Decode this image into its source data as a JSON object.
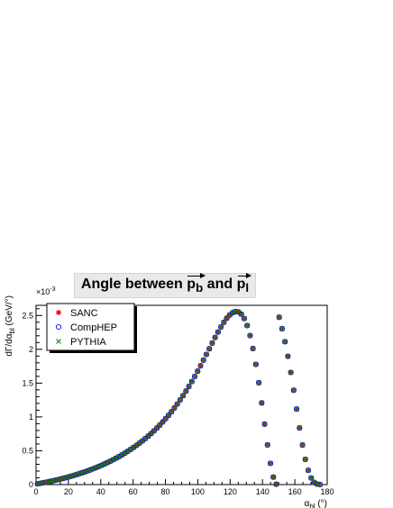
{
  "chart_data": {
    "type": "scatter",
    "title": {
      "main": "Angle between",
      "v1": "p",
      "v1_sub": "b",
      "and": "and",
      "v2": "p",
      "v2_sub": "l"
    },
    "xlabel": {
      "base": "α",
      "sub": "bl",
      "unit": " (°)"
    },
    "ylabel": {
      "base": "dΓ/dα",
      "sub": "bl",
      "unit": " (GeV/°)"
    },
    "y_multiplier": "×10",
    "y_multiplier_exp": "-3",
    "xlim": [
      0,
      180
    ],
    "ylim": [
      0,
      2.65
    ],
    "x_ticks": [
      "0",
      "20",
      "40",
      "60",
      "80",
      "100",
      "120",
      "140",
      "160",
      "180"
    ],
    "y_ticks": [
      "0",
      "0.5",
      "1",
      "1.5",
      "2",
      "2.5"
    ],
    "legend_position": "top-left",
    "grid": false,
    "x": [
      0.9,
      2.7,
      4.5,
      6.3,
      8.1,
      9.9,
      11.7,
      13.5,
      15.3,
      17.1,
      18.9,
      20.7,
      22.5,
      24.3,
      26.1,
      27.9,
      29.7,
      31.5,
      33.3,
      35.1,
      36.9,
      38.7,
      40.5,
      42.3,
      44.1,
      45.9,
      47.7,
      49.5,
      51.3,
      53.1,
      54.9,
      56.7,
      58.5,
      60.3,
      62.1,
      63.9,
      65.7,
      67.5,
      69.3,
      71.1,
      72.9,
      74.7,
      76.5,
      78.3,
      80.1,
      81.9,
      83.7,
      85.5,
      87.3,
      89.1,
      90.9,
      92.7,
      94.5,
      96.3,
      98.1,
      99.9,
      101.7,
      103.5,
      105.3,
      107.1,
      108.9,
      110.7,
      112.5,
      114.3,
      116.1,
      117.9,
      119.7,
      121.5,
      123.3,
      125.1,
      126.9,
      128.7,
      130.5,
      132.3,
      134.1,
      135.9,
      137.7,
      139.5,
      141.3,
      143.1,
      144.9,
      146.7,
      148.5,
      150.3,
      152.1,
      153.9,
      155.7,
      157.5,
      159.3,
      161.1,
      162.9,
      164.7,
      166.5,
      168.3,
      170.1,
      171.9,
      173.7,
      175.5,
      177.3,
      179.1
    ],
    "series": [
      {
        "name": "SANC",
        "marker": "star",
        "color": "#ff0000",
        "values": [
          0.011,
          0.019,
          0.027,
          0.035,
          0.044,
          0.053,
          0.063,
          0.073,
          0.083,
          0.094,
          0.105,
          0.117,
          0.13,
          0.142,
          0.156,
          0.17,
          0.184,
          0.199,
          0.215,
          0.232,
          0.249,
          0.267,
          0.285,
          0.305,
          0.325,
          0.346,
          0.368,
          0.391,
          0.414,
          0.439,
          0.465,
          0.492,
          0.52,
          0.549,
          0.58,
          0.612,
          0.645,
          0.68,
          0.716,
          0.754,
          0.794,
          0.836,
          0.88,
          0.926,
          0.974,
          1.024,
          1.077,
          1.133,
          1.191,
          1.252,
          1.315,
          1.382,
          1.451,
          1.523,
          1.599,
          1.677,
          1.757,
          1.84,
          1.924,
          2.008,
          2.092,
          2.175,
          2.255,
          2.33,
          2.399,
          2.459,
          2.507,
          2.541,
          2.557,
          2.552,
          2.52,
          2.455,
          2.351,
          2.203,
          2.011,
          1.777,
          1.506,
          1.207,
          0.894,
          0.587,
          0.314,
          0.111,
          0.005,
          2.474,
          2.304,
          2.112,
          1.897,
          1.658,
          1.395,
          1.117,
          0.838,
          0.585,
          0.373,
          0.211,
          0.098,
          0.033,
          0.008,
          0.001
        ]
      },
      {
        "name": "CompHEP",
        "marker": "circle",
        "color": "#0000ff",
        "values": [
          0.011,
          0.019,
          0.027,
          0.035,
          0.044,
          0.053,
          0.063,
          0.073,
          0.083,
          0.094,
          0.105,
          0.117,
          0.13,
          0.142,
          0.156,
          0.17,
          0.184,
          0.199,
          0.215,
          0.232,
          0.249,
          0.267,
          0.285,
          0.305,
          0.325,
          0.346,
          0.368,
          0.391,
          0.414,
          0.439,
          0.465,
          0.492,
          0.52,
          0.549,
          0.58,
          0.612,
          0.645,
          0.68,
          0.716,
          0.754,
          0.794,
          0.836,
          0.88,
          0.926,
          0.974,
          1.024,
          1.077,
          1.133,
          1.191,
          1.252,
          1.315,
          1.382,
          1.451,
          1.523,
          1.599,
          1.677,
          1.757,
          1.84,
          1.924,
          2.008,
          2.092,
          2.175,
          2.255,
          2.33,
          2.399,
          2.459,
          2.507,
          2.541,
          2.557,
          2.552,
          2.52,
          2.455,
          2.351,
          2.203,
          2.011,
          1.777,
          1.506,
          1.207,
          0.894,
          0.587,
          0.314,
          0.111,
          0.005,
          2.474,
          2.304,
          2.112,
          1.897,
          1.658,
          1.395,
          1.117,
          0.838,
          0.585,
          0.373,
          0.211,
          0.098,
          0.033,
          0.008,
          0.001
        ]
      },
      {
        "name": "PYTHIA",
        "marker": "cross",
        "color": "#007f00",
        "values": [
          0.011,
          0.019,
          0.027,
          0.035,
          0.044,
          0.053,
          0.063,
          0.073,
          0.083,
          0.094,
          0.105,
          0.117,
          0.13,
          0.142,
          0.156,
          0.17,
          0.184,
          0.199,
          0.215,
          0.232,
          0.249,
          0.267,
          0.285,
          0.305,
          0.325,
          0.346,
          0.368,
          0.391,
          0.414,
          0.439,
          0.465,
          0.492,
          0.52,
          0.549,
          0.58,
          0.612,
          0.645,
          0.68,
          0.716,
          0.754,
          0.794,
          0.836,
          0.88,
          0.926,
          0.974,
          1.024,
          1.077,
          1.133,
          1.191,
          1.252,
          1.315,
          1.382,
          1.451,
          1.523,
          1.599,
          1.677,
          1.757,
          1.84,
          1.924,
          2.008,
          2.092,
          2.175,
          2.255,
          2.33,
          2.399,
          2.459,
          2.507,
          2.541,
          2.557,
          2.552,
          2.52,
          2.455,
          2.351,
          2.203,
          2.011,
          1.777,
          1.506,
          1.207,
          0.894,
          0.587,
          0.314,
          0.111,
          0.005,
          2.474,
          2.304,
          2.112,
          1.897,
          1.658,
          1.395,
          1.117,
          0.838,
          0.585,
          0.373,
          0.211,
          0.098,
          0.033,
          0.008,
          0.001
        ]
      }
    ]
  }
}
